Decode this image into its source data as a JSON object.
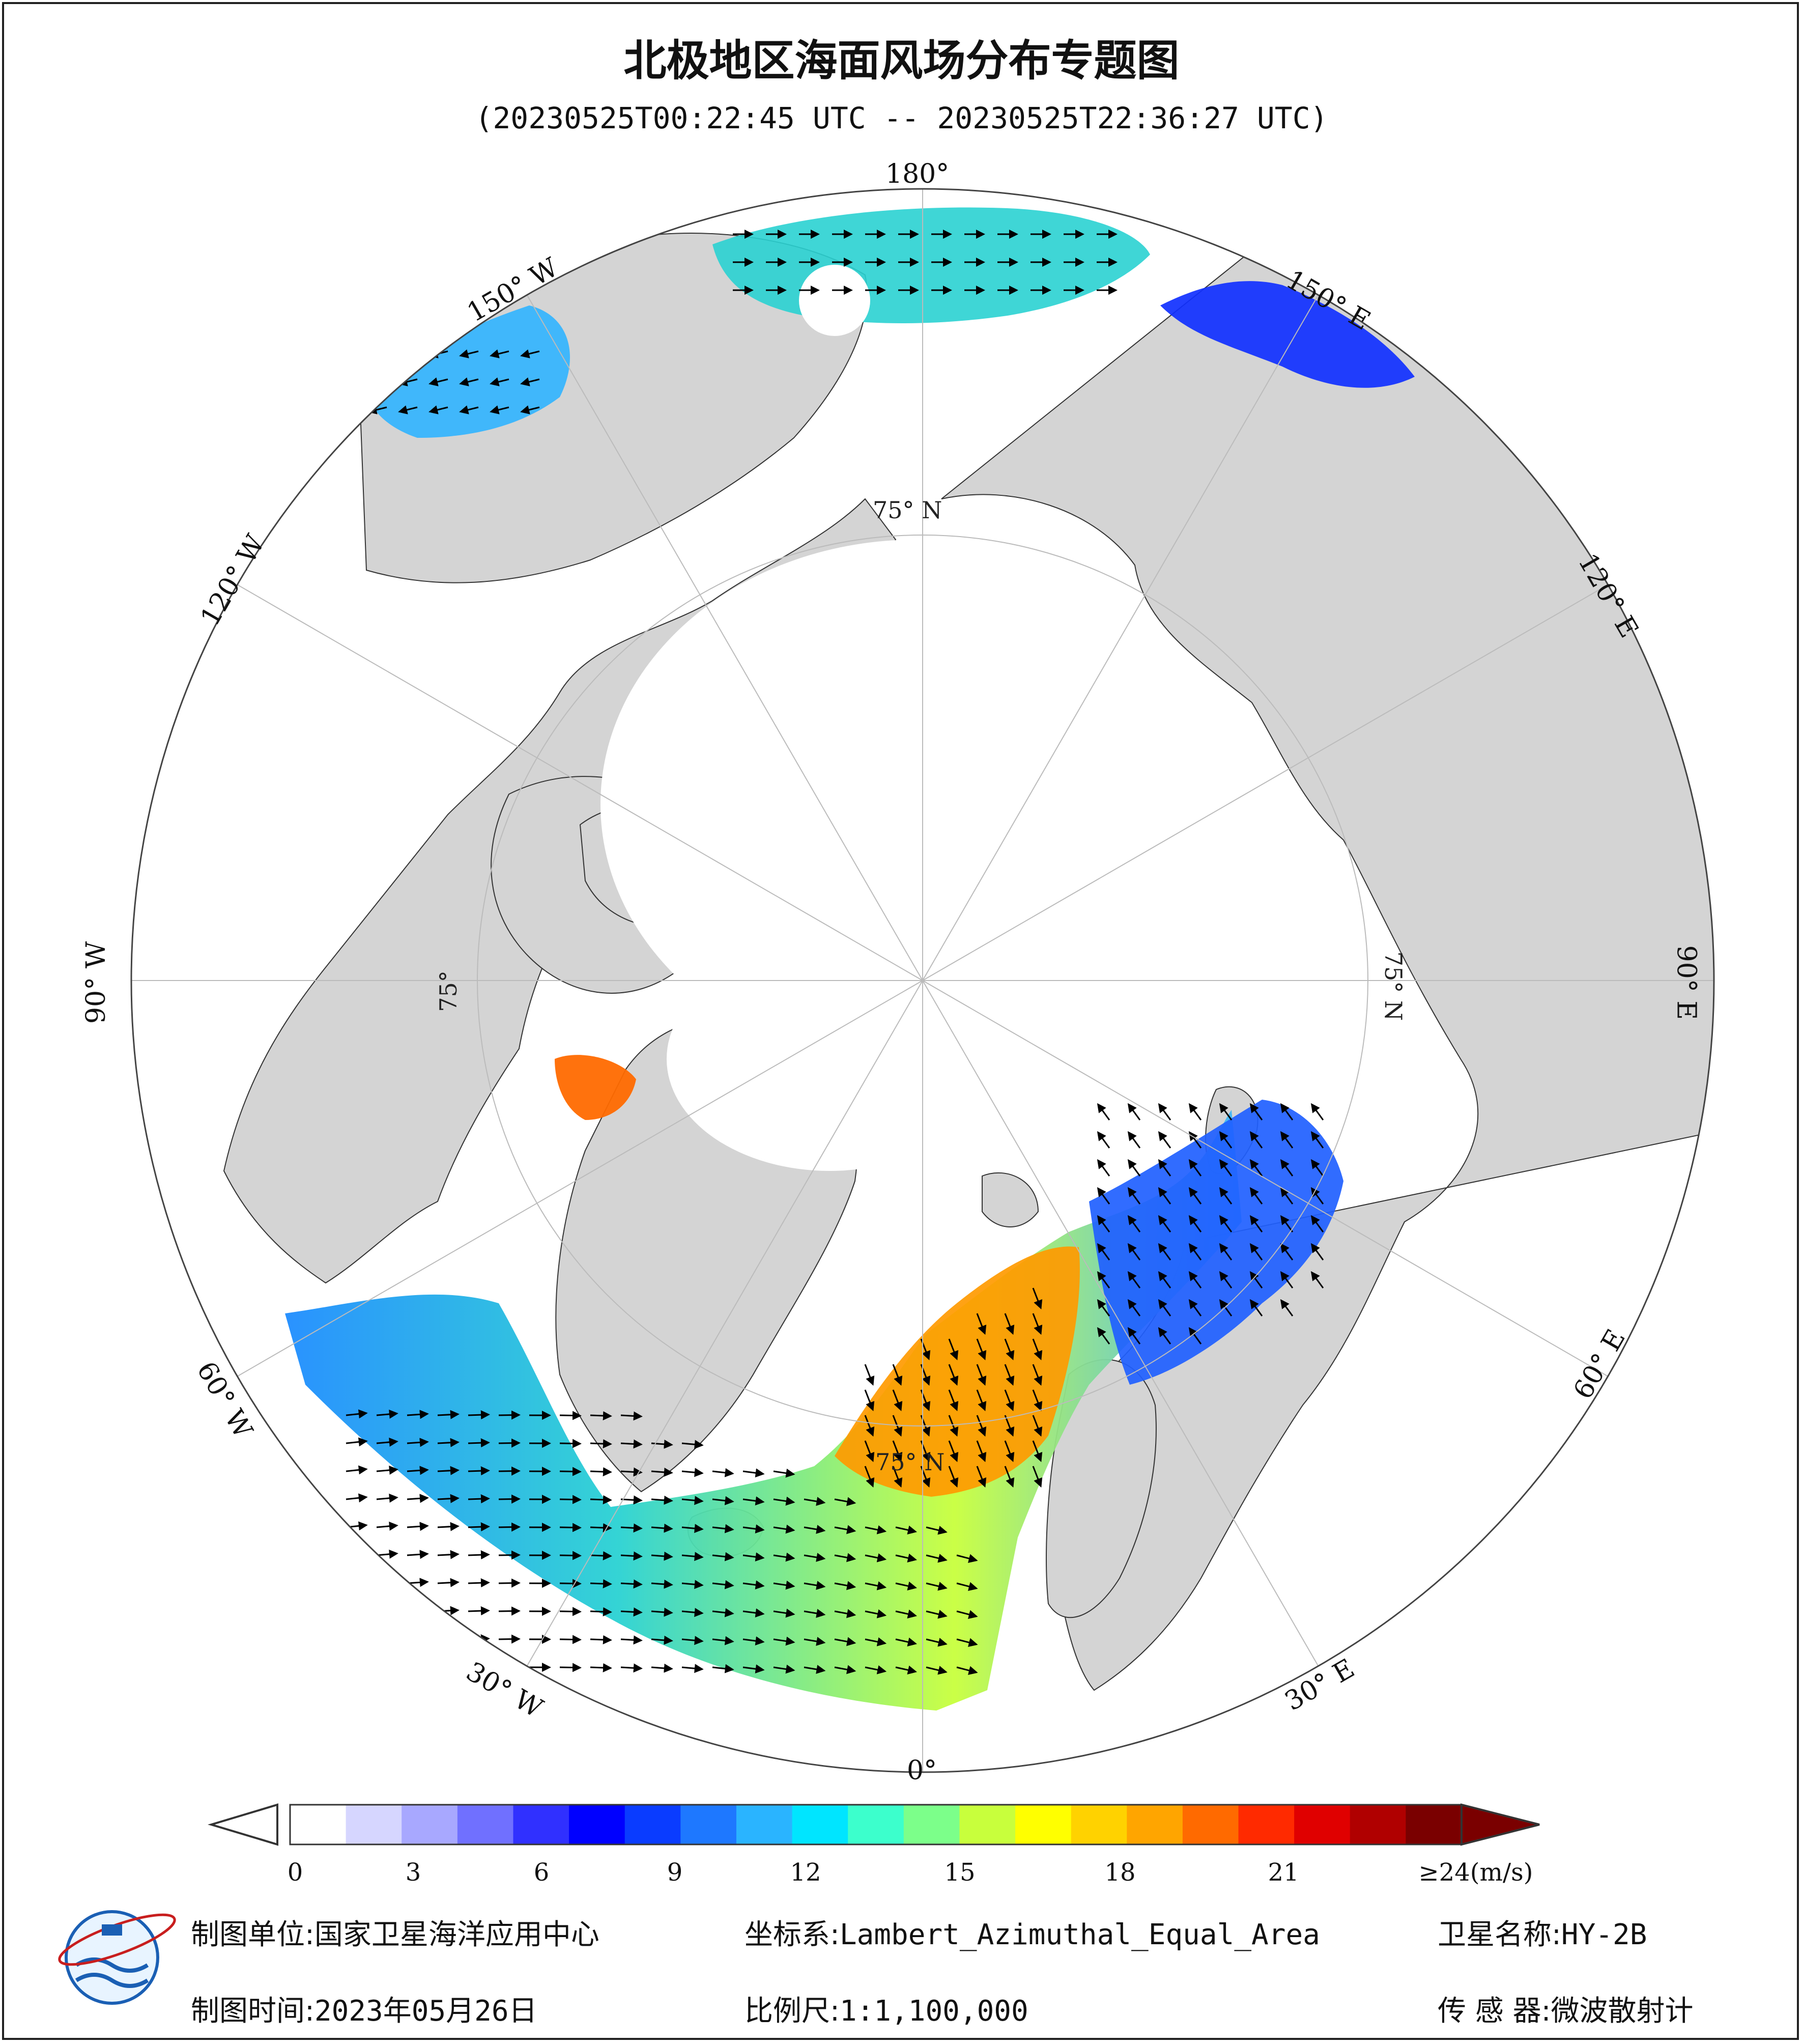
{
  "title": "北极地区海面风场分布专题图",
  "subtitle": "(20230525T00:22:45 UTC -- 20230525T22:36:27 UTC)",
  "longitude_labels": {
    "lon_180": "180°",
    "lon_150w": "150° W",
    "lon_150e": "150° E",
    "lon_120w": "120° W",
    "lon_120e": "120° E",
    "lon_90w": "90° W",
    "lon_90e": "90° E",
    "lon_60w": "60° W",
    "lon_60e": "60° E",
    "lon_30w": "30° W",
    "lon_30e": "30° E",
    "lon_0": "0°"
  },
  "latitude_labels": {
    "top": "75° N",
    "right": "75° N",
    "left": "75°",
    "bottom": "75° N"
  },
  "colorbar": {
    "ticks": [
      "0",
      "3",
      "6",
      "9",
      "12",
      "15",
      "18",
      "21",
      "≥24(m/s)"
    ],
    "min": 0,
    "max": 24,
    "unit": "m/s",
    "colors": [
      "#ffffff",
      "#d6d6ff",
      "#a8a8ff",
      "#7070ff",
      "#3030ff",
      "#0000ff",
      "#0a3cff",
      "#1e78ff",
      "#2ab4ff",
      "#00e5ff",
      "#3cffcc",
      "#7cff8a",
      "#c8ff3c",
      "#ffff00",
      "#ffd200",
      "#ffa500",
      "#ff6a00",
      "#ff2a00",
      "#e00000",
      "#b00000",
      "#7a0000"
    ]
  },
  "footer": {
    "agency_label": "制图单位:",
    "agency_value": "国家卫星海洋应用中心",
    "date_label": "制图时间:",
    "date_value": "2023年05月26日",
    "crs_label": "坐标系:",
    "crs_value": "Lambert_Azimuthal_Equal_Area",
    "scale_label": "比例尺:",
    "scale_value": "1:1,100,000",
    "satellite_label": "卫星名称:",
    "satellite_value": "HY-2B",
    "sensor_label": "传 感 器:",
    "sensor_value": "微波散射计"
  },
  "map": {
    "projection": "Lambert Azimuthal Equal Area",
    "center": "North Pole",
    "ocean_color": "#ffffff",
    "land_color": "#d4d4d4",
    "sea_ice_color": "#ffffff"
  }
}
